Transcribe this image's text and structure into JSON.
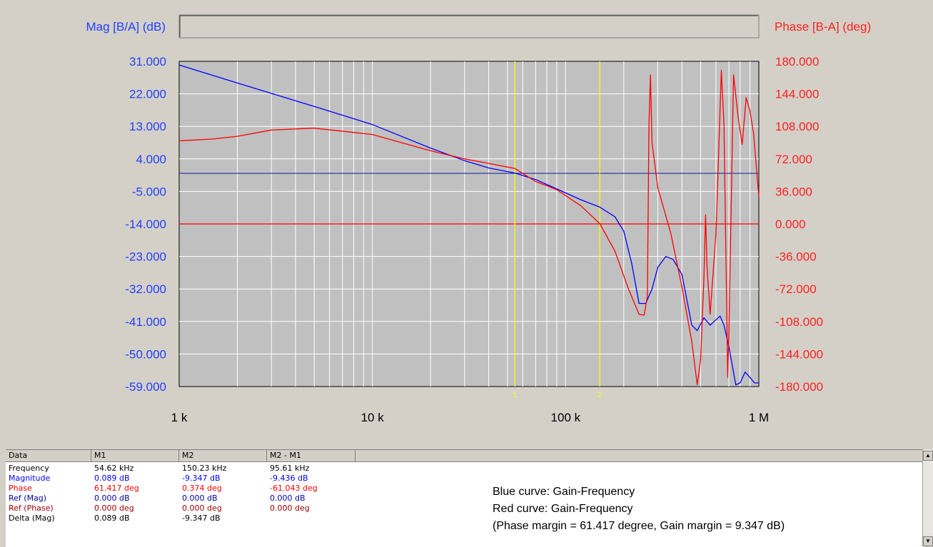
{
  "chart_data": {
    "type": "line",
    "left_axis_label": "Mag [B/A] (dB)",
    "right_axis_label": "Phase [B-A] (deg)",
    "x_scale": "log",
    "x_range": [
      1000,
      1000000
    ],
    "x_tick_labels": [
      {
        "value": 1000,
        "label": "1 k"
      },
      {
        "value": 10000,
        "label": "10 k"
      },
      {
        "value": 100000,
        "label": "100 k"
      },
      {
        "value": 1000000,
        "label": "1 M"
      }
    ],
    "y_left_range": [
      -59,
      31
    ],
    "y_left_ticks": [
      "31.000",
      "22.000",
      "13.000",
      "4.000",
      "-5.000",
      "-14.000",
      "-23.000",
      "-32.000",
      "-41.000",
      "-50.000",
      "-59.000"
    ],
    "y_right_range": [
      -180,
      180
    ],
    "y_right_ticks": [
      "180.000",
      "144.000",
      "108.000",
      "72.000",
      "36.000",
      "0.000",
      "-36.000",
      "-72.000",
      "-108.000",
      "-144.000",
      "-180.000"
    ],
    "grid": true,
    "reference_lines": [
      {
        "axis": "left",
        "value": 0,
        "color": "#1c2ea0"
      },
      {
        "axis": "right",
        "value": 0,
        "color": "#ff0000"
      }
    ],
    "markers": [
      {
        "label": "1",
        "x": 54620,
        "color": "#ffff00"
      },
      {
        "label": "2",
        "x": 150230,
        "color": "#ffff00"
      }
    ],
    "series": [
      {
        "axis": "left",
        "color": "#0000ff",
        "points": [
          [
            1000,
            30
          ],
          [
            2000,
            25
          ],
          [
            5000,
            18.5
          ],
          [
            10000,
            13.5
          ],
          [
            20000,
            7
          ],
          [
            30000,
            3.5
          ],
          [
            40000,
            1.5
          ],
          [
            54620,
            0.09
          ],
          [
            70000,
            -1.7
          ],
          [
            90000,
            -4.3
          ],
          [
            120000,
            -7.3
          ],
          [
            150230,
            -9.35
          ],
          [
            180000,
            -12
          ],
          [
            200000,
            -16
          ],
          [
            220000,
            -25
          ],
          [
            240000,
            -36
          ],
          [
            260000,
            -36
          ],
          [
            280000,
            -32
          ],
          [
            300000,
            -26
          ],
          [
            330000,
            -23
          ],
          [
            360000,
            -23.8
          ],
          [
            400000,
            -28
          ],
          [
            450000,
            -42
          ],
          [
            480000,
            -43.5
          ],
          [
            520000,
            -40
          ],
          [
            560000,
            -42
          ],
          [
            600000,
            -40.5
          ],
          [
            630000,
            -39.5
          ],
          [
            660000,
            -42
          ],
          [
            700000,
            -48
          ],
          [
            760000,
            -58.5
          ],
          [
            800000,
            -58
          ],
          [
            850000,
            -55
          ],
          [
            900000,
            -56.5
          ],
          [
            950000,
            -58
          ],
          [
            1000000,
            -58
          ]
        ]
      },
      {
        "axis": "right",
        "color": "#ff0000",
        "points": [
          [
            1000,
            92
          ],
          [
            1500,
            94
          ],
          [
            2000,
            97
          ],
          [
            3000,
            104
          ],
          [
            5000,
            106
          ],
          [
            10000,
            99
          ],
          [
            20000,
            81
          ],
          [
            30000,
            72
          ],
          [
            40000,
            67
          ],
          [
            54620,
            61.4
          ],
          [
            70000,
            47
          ],
          [
            90000,
            38
          ],
          [
            120000,
            20
          ],
          [
            150230,
            0.4
          ],
          [
            180000,
            -30
          ],
          [
            210000,
            -70
          ],
          [
            240000,
            -100
          ],
          [
            255000,
            -101
          ],
          [
            265000,
            -80
          ],
          [
            270000,
            110
          ],
          [
            275000,
            165
          ],
          [
            280000,
            90
          ],
          [
            300000,
            40
          ],
          [
            350000,
            -10
          ],
          [
            400000,
            -70
          ],
          [
            450000,
            -130
          ],
          [
            480000,
            -178
          ],
          [
            500000,
            -150
          ],
          [
            520000,
            -60
          ],
          [
            530000,
            10
          ],
          [
            540000,
            -50
          ],
          [
            560000,
            -100
          ],
          [
            600000,
            -10
          ],
          [
            620000,
            80
          ],
          [
            640000,
            170
          ],
          [
            660000,
            110
          ],
          [
            690000,
            -170
          ],
          [
            700000,
            -120
          ],
          [
            740000,
            165
          ],
          [
            780000,
            120
          ],
          [
            820000,
            88
          ],
          [
            860000,
            140
          ],
          [
            900000,
            125
          ],
          [
            940000,
            100
          ],
          [
            1000000,
            30
          ]
        ]
      }
    ]
  },
  "table": {
    "headers": [
      "Data",
      "M1",
      "M2",
      "M2 - M1"
    ],
    "rows": [
      {
        "label": "Frequency",
        "m1": "54.62 kHz",
        "m2": "150.23 kHz",
        "diff": "95.61 kHz",
        "color": "#000000"
      },
      {
        "label": "Magnitude",
        "m1": "0.089 dB",
        "m2": "-9.347 dB",
        "diff": "-9.436 dB",
        "color": "#0000ff"
      },
      {
        "label": "Phase",
        "m1": "61.417 deg",
        "m2": "0.374 deg",
        "diff": "-61.043 deg",
        "color": "#ff0000"
      },
      {
        "label": "Ref (Mag)",
        "m1": "0.000 dB",
        "m2": "0.000 dB",
        "diff": "0.000 dB",
        "color": "#0000a0"
      },
      {
        "label": "Ref (Phase)",
        "m1": "0.000 deg",
        "m2": "0.000 deg",
        "diff": "0.000 deg",
        "color": "#a00000"
      },
      {
        "label": "Delta (Mag)",
        "m1": "0.089 dB",
        "m2": "-9.347 dB",
        "diff": "",
        "color": "#000000"
      }
    ]
  },
  "notes": [
    "Blue curve: Gain-Frequency",
    "Red curve: Gain-Frequency",
    "(Phase margin = 61.417 degree, Gain margin = 9.347 dB)"
  ],
  "colors": {
    "mag": "#2040ff",
    "phase": "#ff2020",
    "plot_bg": "#c0c0c0",
    "grid": "#ffffff",
    "marker": "#ffff00"
  }
}
